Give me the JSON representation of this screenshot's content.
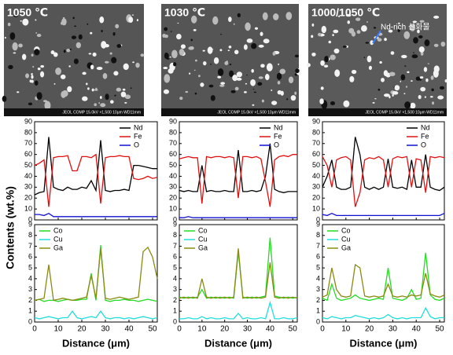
{
  "ylabel": "Contents (wt.%)",
  "images": [
    {
      "label": "1050 ℃",
      "info": "JEOL COMP 15.0kV ×1,500 10μm WD11mm"
    },
    {
      "label": "1030 ℃",
      "info": "JEOL COMP 15.0kV ×1,500 10μm WD11mm"
    },
    {
      "label": "1000/1050 ℃",
      "info": "JEOL COMP 15.0kV ×1,500 10μm WD11mm",
      "annotation": "Nd-rich 산화물"
    }
  ],
  "chart_data": [
    {
      "type": "line",
      "x": [
        0,
        2,
        4,
        6,
        8,
        10,
        12,
        14,
        16,
        18,
        20,
        22,
        24,
        26,
        28,
        30,
        32,
        34,
        36,
        38,
        40,
        42,
        44,
        46,
        48,
        50,
        52
      ],
      "xlim": [
        0,
        52
      ],
      "xticks": [
        0,
        10,
        20,
        30,
        40,
        50
      ],
      "ylim": [
        0,
        90
      ],
      "yticks": [
        0,
        10,
        20,
        30,
        40,
        50,
        60,
        70,
        80,
        90
      ],
      "legend": "upper right",
      "series": [
        {
          "name": "Nd",
          "color": "#000000",
          "values": [
            23,
            25,
            26,
            76,
            30,
            28,
            27,
            30,
            28,
            28,
            30,
            29,
            36,
            27,
            73,
            27,
            26,
            27,
            27,
            28,
            27,
            50,
            50,
            49,
            48,
            47,
            47
          ]
        },
        {
          "name": "Fe",
          "color": "#e01010",
          "values": [
            50,
            52,
            55,
            12,
            57,
            58,
            58,
            59,
            45,
            45,
            58,
            58,
            57,
            60,
            15,
            57,
            58,
            58,
            59,
            58,
            58,
            38,
            37,
            38,
            40,
            38,
            39
          ]
        },
        {
          "name": "O",
          "color": "#1010d0",
          "values": [
            5,
            5,
            4,
            6,
            3,
            3,
            3,
            3,
            3,
            3,
            3,
            3,
            3,
            3,
            3,
            3,
            3,
            3,
            3,
            3,
            3,
            3,
            3,
            3,
            3,
            3,
            3
          ]
        }
      ]
    },
    {
      "type": "line",
      "x": [
        0,
        2,
        4,
        6,
        8,
        10,
        12,
        14,
        16,
        18,
        20,
        22,
        24,
        26,
        28,
        30,
        32,
        34,
        36,
        38,
        40,
        42,
        44,
        46,
        48,
        50,
        52
      ],
      "xlim": [
        0,
        52
      ],
      "xticks": [
        0,
        10,
        20,
        30,
        40,
        50
      ],
      "ylim": [
        0,
        90
      ],
      "yticks": [
        0,
        10,
        20,
        30,
        40,
        50,
        60,
        70,
        80,
        90
      ],
      "legend": "upper right",
      "series": [
        {
          "name": "Nd",
          "color": "#000000",
          "values": [
            27,
            26,
            27,
            26,
            26,
            50,
            26,
            27,
            26,
            26,
            27,
            26,
            26,
            64,
            26,
            26,
            27,
            26,
            27,
            40,
            70,
            28,
            26,
            25,
            26,
            26,
            26
          ]
        },
        {
          "name": "Fe",
          "color": "#e01010",
          "values": [
            56,
            57,
            58,
            57,
            57,
            15,
            58,
            57,
            58,
            58,
            57,
            58,
            57,
            20,
            58,
            58,
            57,
            58,
            56,
            35,
            12,
            55,
            58,
            59,
            58,
            60,
            60
          ]
        },
        {
          "name": "O",
          "color": "#1010d0",
          "values": [
            2,
            2,
            3,
            2,
            2,
            2,
            2,
            2,
            2,
            2,
            2,
            2,
            2,
            2,
            2,
            2,
            2,
            2,
            2,
            2,
            2,
            2,
            2,
            2,
            2,
            2,
            2
          ]
        }
      ]
    },
    {
      "type": "line",
      "x": [
        0,
        2,
        4,
        6,
        8,
        10,
        12,
        14,
        16,
        18,
        20,
        22,
        24,
        26,
        28,
        30,
        32,
        34,
        36,
        38,
        40,
        42,
        44,
        46,
        48,
        50,
        52
      ],
      "xlim": [
        0,
        52
      ],
      "xticks": [
        0,
        10,
        20,
        30,
        40,
        50
      ],
      "ylim": [
        0,
        90
      ],
      "yticks": [
        0,
        10,
        20,
        30,
        40,
        50,
        60,
        70,
        80,
        90
      ],
      "legend": "upper right",
      "series": [
        {
          "name": "Nd",
          "color": "#000000",
          "values": [
            30,
            40,
            55,
            30,
            28,
            28,
            30,
            76,
            60,
            30,
            28,
            30,
            28,
            30,
            56,
            30,
            29,
            30,
            28,
            55,
            30,
            30,
            60,
            30,
            28,
            27,
            30
          ]
        },
        {
          "name": "Fe",
          "color": "#e01010",
          "values": [
            58,
            50,
            30,
            55,
            57,
            58,
            55,
            12,
            25,
            55,
            57,
            56,
            58,
            55,
            30,
            56,
            58,
            57,
            58,
            30,
            56,
            55,
            25,
            58,
            57,
            58,
            57
          ]
        },
        {
          "name": "O",
          "color": "#1010d0",
          "values": [
            5,
            4,
            6,
            4,
            4,
            4,
            4,
            4,
            4,
            4,
            4,
            4,
            4,
            4,
            4,
            4,
            4,
            4,
            4,
            4,
            4,
            4,
            4,
            4,
            4,
            4,
            6
          ]
        }
      ]
    },
    {
      "type": "line",
      "xlabel": "Distance (μm)",
      "x": [
        0,
        2,
        4,
        6,
        8,
        10,
        12,
        14,
        16,
        18,
        20,
        22,
        24,
        26,
        28,
        30,
        32,
        34,
        36,
        38,
        40,
        42,
        44,
        46,
        48,
        50,
        52
      ],
      "xlim": [
        0,
        52
      ],
      "xticks": [
        0,
        10,
        20,
        30,
        40,
        50
      ],
      "ylim": [
        0,
        9
      ],
      "yticks": [
        0,
        1,
        2,
        3,
        4,
        5,
        6,
        7,
        8,
        9
      ],
      "legend": "upper left",
      "series": [
        {
          "name": "Co",
          "color": "#22dd22",
          "values": [
            2.0,
            2.1,
            1.9,
            2.0,
            2.0,
            1.9,
            2.0,
            2.1,
            2.0,
            2.0,
            2.1,
            2.1,
            4.5,
            2.0,
            7.1,
            2.0,
            1.9,
            2.0,
            2.0,
            2.1,
            2.0,
            2.0,
            1.9,
            2.0,
            2.1,
            2.0,
            1.9
          ]
        },
        {
          "name": "Cu",
          "color": "#22dddd",
          "values": [
            0.4,
            0.3,
            0.4,
            0.5,
            0.4,
            0.3,
            0.4,
            0.4,
            1.0,
            0.4,
            0.3,
            0.4,
            0.5,
            0.4,
            1.0,
            0.4,
            0.3,
            0.4,
            0.4,
            0.3,
            0.4,
            0.3,
            0.4,
            0.5,
            0.4,
            0.3,
            0.4
          ]
        },
        {
          "name": "Ga",
          "color": "#8a8a10",
          "values": [
            2.0,
            2.1,
            2.2,
            5.3,
            2.0,
            2.1,
            2.2,
            2.1,
            2.0,
            2.1,
            2.2,
            2.3,
            4.3,
            2.2,
            6.8,
            2.2,
            2.1,
            2.2,
            2.3,
            2.2,
            2.1,
            2.2,
            2.3,
            6.5,
            6.9,
            6.0,
            4.0
          ]
        }
      ]
    },
    {
      "type": "line",
      "xlabel": "Distance (μm)",
      "x": [
        0,
        2,
        4,
        6,
        8,
        10,
        12,
        14,
        16,
        18,
        20,
        22,
        24,
        26,
        28,
        30,
        32,
        34,
        36,
        38,
        40,
        42,
        44,
        46,
        48,
        50,
        52
      ],
      "xlim": [
        0,
        52
      ],
      "xticks": [
        0,
        10,
        20,
        30,
        40,
        50
      ],
      "ylim": [
        0,
        9
      ],
      "yticks": [
        0,
        1,
        2,
        3,
        4,
        5,
        6,
        7,
        8,
        9
      ],
      "legend": "upper left",
      "series": [
        {
          "name": "Co",
          "color": "#22dd22",
          "values": [
            2.3,
            2.2,
            2.3,
            2.2,
            2.3,
            3.0,
            2.2,
            2.3,
            2.2,
            2.3,
            2.2,
            2.3,
            2.2,
            6.5,
            2.3,
            2.2,
            2.3,
            2.2,
            2.3,
            2.4,
            7.8,
            2.4,
            2.3,
            2.2,
            2.3,
            2.2,
            2.3
          ]
        },
        {
          "name": "Cu",
          "color": "#22dddd",
          "values": [
            0.3,
            0.3,
            0.4,
            0.3,
            0.3,
            0.5,
            0.3,
            0.4,
            0.3,
            0.3,
            0.4,
            0.3,
            0.3,
            0.8,
            0.3,
            0.4,
            0.3,
            0.3,
            0.4,
            0.3,
            1.8,
            0.3,
            0.3,
            0.4,
            0.3,
            0.3,
            0.4
          ]
        },
        {
          "name": "Ga",
          "color": "#8a8a10",
          "values": [
            2.2,
            2.3,
            2.2,
            2.3,
            2.2,
            4.0,
            2.3,
            2.2,
            2.3,
            2.2,
            2.3,
            2.2,
            2.3,
            6.8,
            2.2,
            2.3,
            2.2,
            2.3,
            2.2,
            2.3,
            5.5,
            2.3,
            2.2,
            2.3,
            2.2,
            2.3,
            2.2
          ]
        }
      ]
    },
    {
      "type": "line",
      "xlabel": "Distance (μm)",
      "x": [
        0,
        2,
        4,
        6,
        8,
        10,
        12,
        14,
        16,
        18,
        20,
        22,
        24,
        26,
        28,
        30,
        32,
        34,
        36,
        38,
        40,
        42,
        44,
        46,
        48,
        50,
        52
      ],
      "xlim": [
        0,
        52
      ],
      "xticks": [
        0,
        10,
        20,
        30,
        40,
        50
      ],
      "ylim": [
        0,
        9
      ],
      "yticks": [
        0,
        1,
        2,
        3,
        4,
        5,
        6,
        7,
        8,
        9
      ],
      "legend": "upper left",
      "series": [
        {
          "name": "Co",
          "color": "#22dd22",
          "values": [
            2.2,
            2.0,
            3.5,
            2.2,
            2.0,
            2.1,
            2.2,
            2.5,
            2.2,
            2.1,
            2.0,
            2.1,
            2.2,
            2.1,
            5.0,
            2.2,
            2.1,
            2.0,
            2.2,
            3.0,
            2.1,
            2.2,
            6.4,
            2.5,
            2.1,
            2.0,
            2.2
          ]
        },
        {
          "name": "Cu",
          "color": "#22dddd",
          "values": [
            0.4,
            0.3,
            0.5,
            0.4,
            0.3,
            0.4,
            0.4,
            0.6,
            0.5,
            0.4,
            0.3,
            0.4,
            0.3,
            0.4,
            0.7,
            0.4,
            0.3,
            0.4,
            0.3,
            0.4,
            0.4,
            0.4,
            1.3,
            0.5,
            0.3,
            0.4,
            0.4
          ]
        },
        {
          "name": "Ga",
          "color": "#8a8a10",
          "values": [
            2.3,
            2.5,
            5.0,
            3.0,
            2.4,
            2.3,
            2.4,
            5.3,
            5.0,
            2.4,
            2.3,
            2.4,
            2.3,
            2.4,
            3.5,
            2.4,
            2.3,
            2.4,
            2.3,
            2.5,
            2.4,
            2.5,
            4.5,
            2.6,
            2.4,
            2.3,
            2.5
          ]
        }
      ]
    }
  ]
}
